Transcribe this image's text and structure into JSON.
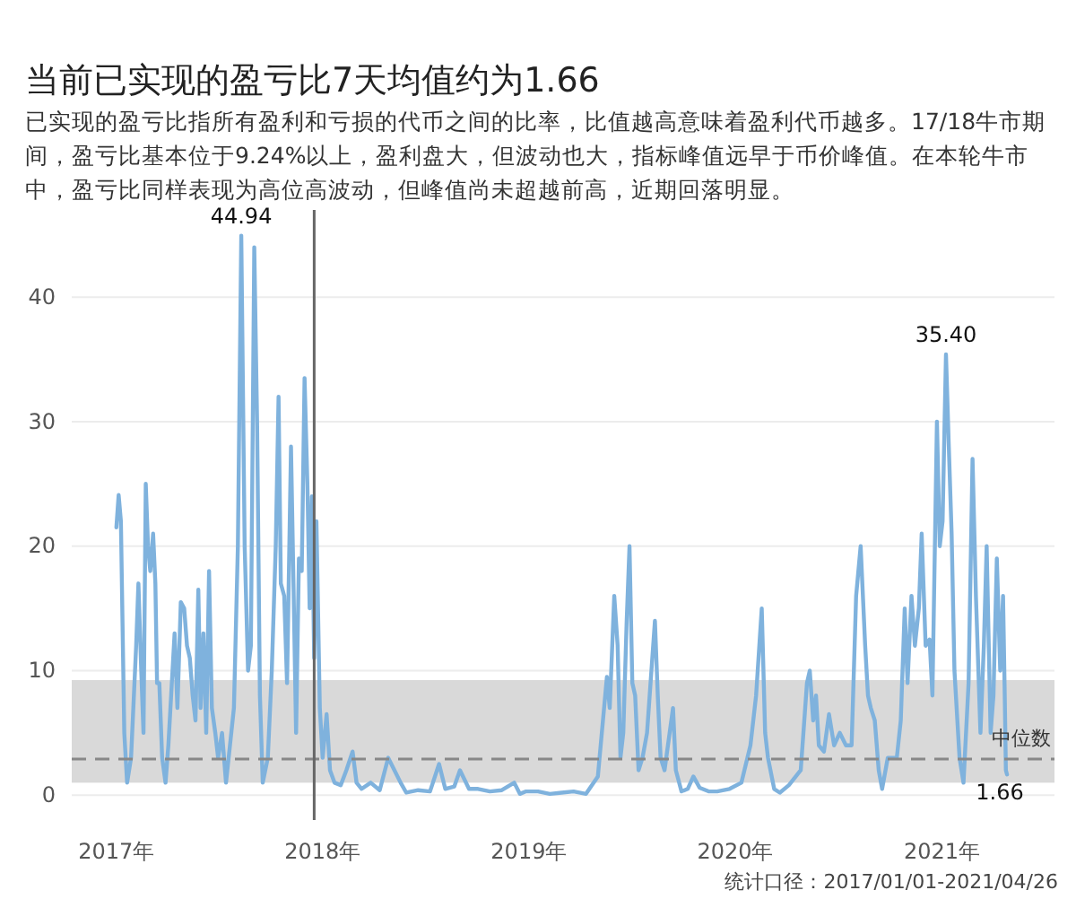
{
  "chart_data": {
    "type": "line",
    "title": "当前已实现的盈亏比7天均值约为1.66",
    "subtitle": "已实现的盈亏比指所有盈利和亏损的代币之间的比率，比值越高意味着盈利代币越多。17/18牛市期间，盈亏比基本位于9.24%以上，盈利盘大，但波动也大，指标峰值远早于币价峰值。在本轮牛市中，盈亏比同样表现为高位高波动，但峰值尚未超越前高，近期回落明显。",
    "series": [
      {
        "color": "#7fb2dd",
        "x": [
          "2017-01-01",
          "2017-01-05",
          "2017-01-09",
          "2017-01-15",
          "2017-01-20",
          "2017-01-27",
          "2017-02-05",
          "2017-02-09",
          "2017-02-14",
          "2017-02-18",
          "2017-02-22",
          "2017-02-26",
          "2017-03-02",
          "2017-03-07",
          "2017-03-11",
          "2017-03-14",
          "2017-03-18",
          "2017-03-23",
          "2017-03-29",
          "2017-04-03",
          "2017-04-14",
          "2017-04-19",
          "2017-04-25",
          "2017-05-01",
          "2017-05-06",
          "2017-05-11",
          "2017-05-16",
          "2017-05-21",
          "2017-05-26",
          "2017-05-30",
          "2017-06-04",
          "2017-06-09",
          "2017-06-14",
          "2017-06-19",
          "2017-06-25",
          "2017-06-30",
          "2017-07-07",
          "2017-07-14",
          "2017-07-21",
          "2017-07-28",
          "2017-08-04",
          "2017-08-10",
          "2017-08-16",
          "2017-08-22",
          "2017-08-27",
          "2017-09-02",
          "2017-09-07",
          "2017-09-12",
          "2017-09-17",
          "2017-09-26",
          "2017-10-03",
          "2017-10-10",
          "2017-10-15",
          "2017-10-19",
          "2017-10-25",
          "2017-10-30",
          "2017-11-06",
          "2017-11-10",
          "2017-11-15",
          "2017-11-20",
          "2017-11-25",
          "2017-11-30",
          "2017-12-05",
          "2017-12-09",
          "2017-12-13",
          "2017-12-17",
          "2017-12-21",
          "2017-12-27",
          "2018-01-01",
          "2018-01-08",
          "2018-01-14",
          "2018-01-22",
          "2018-02-02",
          "2018-02-12",
          "2018-02-23",
          "2018-03-02",
          "2018-03-11",
          "2018-03-27",
          "2018-04-12",
          "2018-04-27",
          "2018-05-08",
          "2018-05-19",
          "2018-05-29",
          "2018-06-19",
          "2018-07-10",
          "2018-07-26",
          "2018-08-06",
          "2018-08-22",
          "2018-09-01",
          "2018-09-17",
          "2018-10-03",
          "2018-10-24",
          "2018-11-14",
          "2018-12-06",
          "2018-12-16",
          "2018-12-27",
          "2019-01-17",
          "2019-02-07",
          "2019-02-28",
          "2019-03-21",
          "2019-04-12",
          "2019-05-03",
          "2019-05-19",
          "2019-05-24",
          "2019-06-01",
          "2019-06-07",
          "2019-06-12",
          "2019-06-17",
          "2019-06-23",
          "2019-06-28",
          "2019-07-03",
          "2019-07-08",
          "2019-07-14",
          "2019-07-21",
          "2019-07-29",
          "2019-08-12",
          "2019-08-17",
          "2019-08-22",
          "2019-08-29",
          "2019-09-07",
          "2019-09-13",
          "2019-09-18",
          "2019-09-28",
          "2019-10-09",
          "2019-10-19",
          "2019-10-30",
          "2019-11-15",
          "2019-11-30",
          "2019-12-22",
          "2020-01-12",
          "2020-01-28",
          "2020-02-07",
          "2020-02-17",
          "2020-02-23",
          "2020-02-28",
          "2020-03-10",
          "2020-03-20",
          "2020-04-05",
          "2020-04-26",
          "2020-05-07",
          "2020-05-12",
          "2020-05-18",
          "2020-05-23",
          "2020-05-28",
          "2020-06-06",
          "2020-06-15",
          "2020-06-24",
          "2020-07-04",
          "2020-07-15",
          "2020-07-25",
          "2020-08-02",
          "2020-08-10",
          "2020-08-18",
          "2020-08-23",
          "2020-08-28",
          "2020-09-04",
          "2020-09-11",
          "2020-09-17",
          "2020-09-27",
          "2020-10-13",
          "2020-10-20",
          "2020-10-27",
          "2020-11-01",
          "2020-11-08",
          "2020-11-14",
          "2020-11-21",
          "2020-11-26",
          "2020-12-03",
          "2020-12-10",
          "2020-12-15",
          "2020-12-23",
          "2020-12-28",
          "2021-01-02",
          "2021-01-08",
          "2021-01-13",
          "2021-01-18",
          "2021-01-23",
          "2021-02-01",
          "2021-02-08",
          "2021-02-17",
          "2021-02-24",
          "2021-03-02",
          "2021-03-10",
          "2021-03-16",
          "2021-03-21",
          "2021-03-28",
          "2021-04-02",
          "2021-04-08",
          "2021-04-14",
          "2021-04-19",
          "2021-04-22",
          "2021-04-24",
          "2021-04-26"
        ],
        "values": [
          21.5,
          24.1,
          22,
          5,
          1,
          3,
          12,
          17,
          10,
          5,
          25,
          20,
          18,
          21,
          17,
          9,
          9,
          3,
          1,
          4,
          13,
          7,
          15.5,
          15,
          12,
          11,
          8,
          6,
          16.5,
          7,
          13,
          5,
          18,
          7,
          5,
          3,
          5,
          1,
          4,
          7,
          20,
          44.94,
          20,
          10,
          12,
          44,
          30,
          8,
          1,
          3,
          10,
          20,
          32,
          17,
          16,
          9,
          28,
          18,
          5,
          19,
          18,
          33.5,
          25,
          15,
          24,
          11,
          22,
          7,
          3,
          6.5,
          2,
          1,
          0.8,
          2,
          3.5,
          1,
          0.5,
          1,
          0.4,
          3,
          2,
          1,
          0.2,
          0.4,
          0.3,
          2.5,
          0.5,
          0.7,
          2,
          0.5,
          0.5,
          0.3,
          0.4,
          1,
          0.1,
          0.3,
          0.3,
          0.1,
          0.2,
          0.3,
          0.1,
          1.5,
          9.5,
          7,
          16,
          12,
          3,
          5,
          14,
          20,
          9,
          8,
          2,
          3,
          5,
          14,
          8,
          3,
          2,
          5,
          7,
          2,
          0.3,
          0.5,
          1.5,
          0.6,
          0.3,
          0.3,
          0.5,
          1,
          4,
          8,
          15,
          5,
          3,
          0.5,
          0.2,
          0.8,
          2,
          9,
          10,
          6,
          8,
          4,
          3.5,
          6.5,
          4,
          5,
          4,
          4,
          16,
          20,
          12,
          8,
          7,
          6,
          2,
          0.5,
          3,
          3,
          6,
          15,
          9,
          16,
          12,
          15,
          21,
          12,
          12.5,
          8,
          30,
          20,
          22,
          35.4,
          28,
          21,
          10,
          3,
          1,
          9,
          27,
          16,
          5,
          12,
          20,
          5,
          8,
          19,
          10,
          16,
          8,
          2,
          1.66
        ]
      }
    ],
    "xlim": [
      "2016-10-14",
      "2021-07-19"
    ],
    "xticks": [
      {
        "value": "2017-01-01",
        "label": "2017年"
      },
      {
        "value": "2018-01-01",
        "label": "2018年"
      },
      {
        "value": "2019-01-01",
        "label": "2019年"
      },
      {
        "value": "2020-01-01",
        "label": "2020年"
      },
      {
        "value": "2021-01-01",
        "label": "2021年"
      }
    ],
    "ylim": [
      -2,
      47
    ],
    "yticks": [
      0,
      10,
      20,
      30,
      40
    ],
    "grid": "y",
    "marker": "none",
    "line_style": "solid",
    "bands": [
      {
        "axis": "y",
        "from": 1,
        "to": 9.24,
        "color": "#d9d9d9"
      }
    ],
    "ref_lines": [
      {
        "axis": "y",
        "value": 2.9,
        "label": "中位数",
        "color": "#888888",
        "line_style": "dashed"
      },
      {
        "axis": "x",
        "value": "2017-12-17",
        "color": "#666666",
        "line_style": "solid"
      }
    ],
    "annotations": [
      {
        "text": "44.94",
        "x": "2017-08-10",
        "y": 44.94
      },
      {
        "text": "35.40",
        "x": "2021-01-08",
        "y": 35.4
      },
      {
        "text": "1.66",
        "x": "2021-04-26",
        "y": 1.66
      },
      "统计口径：2017/01/01-2021/04/26"
    ]
  }
}
